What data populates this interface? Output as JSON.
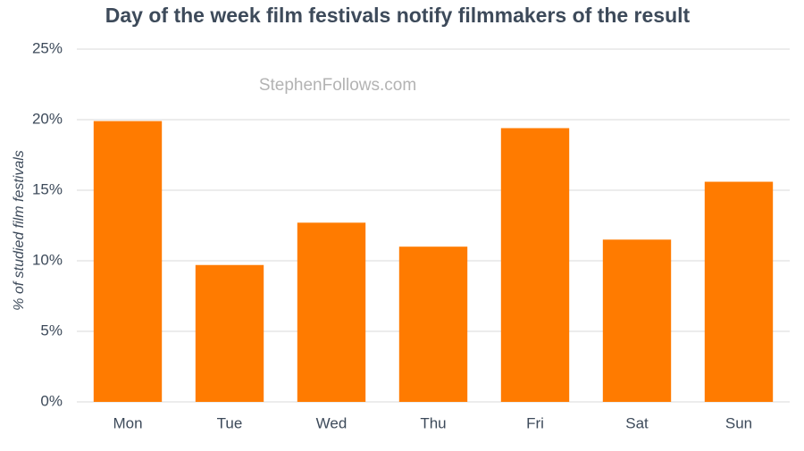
{
  "chart_data": {
    "type": "bar",
    "title": "Day of the week film festivals notify filmmakers of the result",
    "watermark": "StephenFollows.com",
    "y_label": "% of studied film festivals",
    "categories": [
      "Mon",
      "Tue",
      "Wed",
      "Thu",
      "Fri",
      "Sat",
      "Sun"
    ],
    "values": [
      19.9,
      9.7,
      12.7,
      11.0,
      19.4,
      11.5,
      15.6
    ],
    "color": "#ff7b00",
    "ylim": [
      0,
      25
    ],
    "yticks": [
      {
        "value": 0,
        "label": "0%"
      },
      {
        "value": 5,
        "label": "5%"
      },
      {
        "value": 10,
        "label": "10%"
      },
      {
        "value": 15,
        "label": "15%"
      },
      {
        "value": 20,
        "label": "20%"
      },
      {
        "value": 25,
        "label": "25%"
      }
    ],
    "grid": true
  }
}
